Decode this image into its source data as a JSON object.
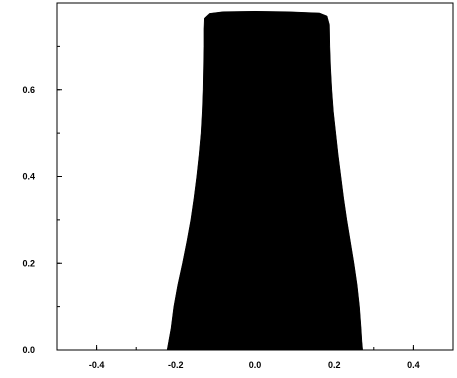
{
  "chart_data": {
    "type": "area",
    "title": "",
    "xlabel": "",
    "ylabel": "",
    "xlim": [
      -0.5,
      0.5
    ],
    "ylim": [
      0,
      0.8
    ],
    "grid": false,
    "legend": "none",
    "fill_color": "#000000",
    "x_ticks": [
      {
        "value": -0.4,
        "label": "-0.4"
      },
      {
        "value": -0.2,
        "label": "-0.2"
      },
      {
        "value": 0.0,
        "label": "0.0"
      },
      {
        "value": 0.2,
        "label": "0.2"
      },
      {
        "value": 0.4,
        "label": "0.4"
      }
    ],
    "y_ticks": [
      {
        "value": 0.0,
        "label": "0.0"
      },
      {
        "value": 0.2,
        "label": "0.2"
      },
      {
        "value": 0.4,
        "label": "0.4"
      },
      {
        "value": 0.6,
        "label": "0.6"
      }
    ],
    "series": [
      {
        "points": [
          [
            -0.222,
            0.0
          ],
          [
            -0.218,
            0.02
          ],
          [
            -0.212,
            0.05
          ],
          [
            -0.205,
            0.1
          ],
          [
            -0.195,
            0.15
          ],
          [
            -0.183,
            0.2
          ],
          [
            -0.172,
            0.25
          ],
          [
            -0.162,
            0.3
          ],
          [
            -0.154,
            0.35
          ],
          [
            -0.147,
            0.4
          ],
          [
            -0.141,
            0.45
          ],
          [
            -0.136,
            0.5
          ],
          [
            -0.133,
            0.55
          ],
          [
            -0.131,
            0.6
          ],
          [
            -0.13,
            0.65
          ],
          [
            -0.129,
            0.7
          ],
          [
            -0.129,
            0.74
          ],
          [
            -0.128,
            0.765
          ],
          [
            -0.115,
            0.776
          ],
          [
            -0.08,
            0.78
          ],
          [
            0.0,
            0.781
          ],
          [
            0.08,
            0.78
          ],
          [
            0.163,
            0.777
          ],
          [
            0.182,
            0.77
          ],
          [
            0.188,
            0.75
          ],
          [
            0.189,
            0.7
          ],
          [
            0.191,
            0.65
          ],
          [
            0.194,
            0.6
          ],
          [
            0.198,
            0.55
          ],
          [
            0.204,
            0.5
          ],
          [
            0.21,
            0.45
          ],
          [
            0.217,
            0.4
          ],
          [
            0.224,
            0.35
          ],
          [
            0.232,
            0.3
          ],
          [
            0.241,
            0.25
          ],
          [
            0.25,
            0.2
          ],
          [
            0.258,
            0.15
          ],
          [
            0.264,
            0.1
          ],
          [
            0.268,
            0.05
          ],
          [
            0.27,
            0.02
          ],
          [
            0.272,
            0.0
          ]
        ]
      }
    ]
  }
}
